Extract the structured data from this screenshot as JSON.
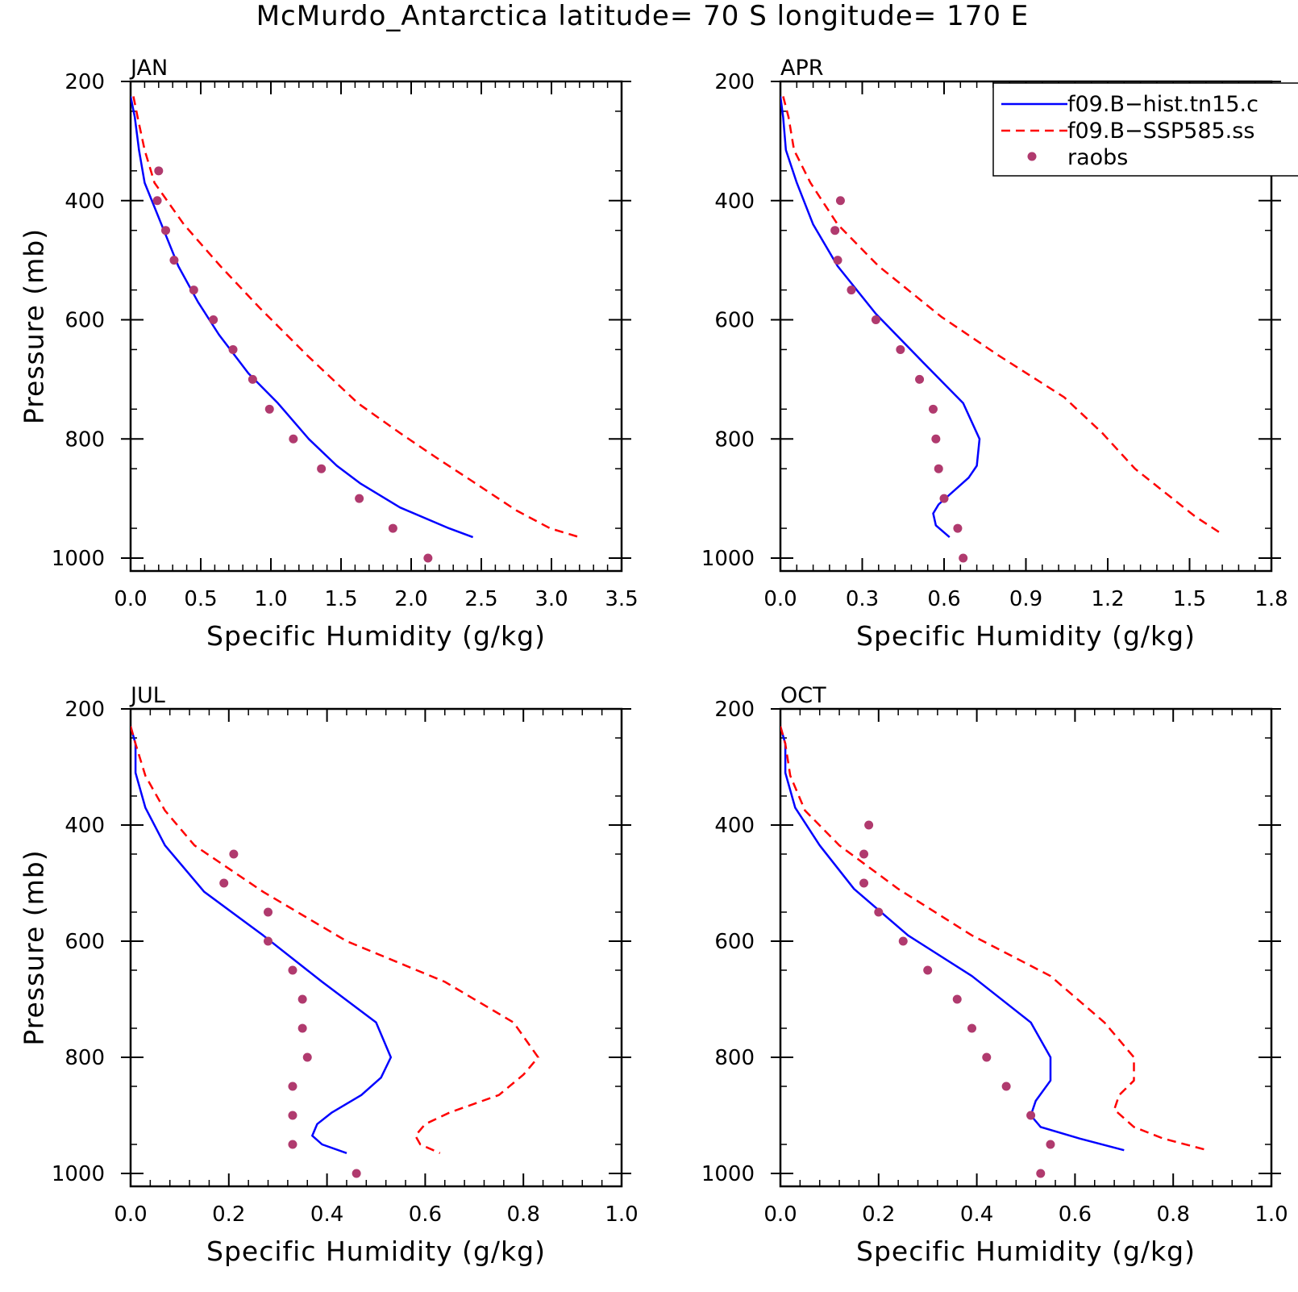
{
  "title": "McMurdo_Antarctica  latitude= 70 S longitude= 170 E",
  "colors": {
    "hist": "#0000ff",
    "ssp": "#ff0000",
    "raobs": "#b03a6e"
  },
  "legend": [
    {
      "label": "f09.B−hist.tn15.c",
      "style": "solid",
      "color_key": "hist"
    },
    {
      "label": "f09.B−SSP585.ss",
      "style": "dashed",
      "color_key": "ssp"
    },
    {
      "label": "raobs",
      "style": "dots",
      "color_key": "raobs"
    }
  ],
  "chart_data": [
    {
      "type": "line",
      "title": "JAN",
      "xlabel": "Specific Humidity (g/kg)",
      "ylabel": "Pressure (mb)",
      "xlim": [
        0,
        3.5
      ],
      "xticks": [
        "0.0",
        "0.5",
        "1.0",
        "1.5",
        "2.0",
        "2.5",
        "3.0",
        "3.5"
      ],
      "ylim": [
        1000,
        200
      ],
      "yticks": [
        "200",
        "400",
        "600",
        "800",
        "1000"
      ],
      "series": [
        {
          "name": "f09.B−hist.tn15.c",
          "style": "solid",
          "points": [
            [
              0.0,
              225
            ],
            [
              0.03,
              260
            ],
            [
              0.06,
              315
            ],
            [
              0.1,
              370
            ],
            [
              0.22,
              440
            ],
            [
              0.34,
              510
            ],
            [
              0.48,
              570
            ],
            [
              0.63,
              625
            ],
            [
              0.84,
              690
            ],
            [
              1.05,
              740
            ],
            [
              1.27,
              800
            ],
            [
              1.47,
              845
            ],
            [
              1.64,
              875
            ],
            [
              1.92,
              915
            ],
            [
              2.27,
              950
            ],
            [
              2.44,
              965
            ]
          ]
        },
        {
          "name": "f09.B−SSP585.ss",
          "style": "dashed",
          "points": [
            [
              0.02,
              225
            ],
            [
              0.05,
              260
            ],
            [
              0.1,
              315
            ],
            [
              0.17,
              370
            ],
            [
              0.38,
              440
            ],
            [
              0.64,
              510
            ],
            [
              0.92,
              580
            ],
            [
              1.26,
              660
            ],
            [
              1.62,
              740
            ],
            [
              1.92,
              790
            ],
            [
              2.17,
              830
            ],
            [
              2.43,
              870
            ],
            [
              2.75,
              920
            ],
            [
              2.99,
              950
            ],
            [
              3.2,
              965
            ]
          ]
        },
        {
          "name": "raobs",
          "style": "dots",
          "points": [
            [
              0.2,
              350
            ],
            [
              0.19,
              400
            ],
            [
              0.25,
              450
            ],
            [
              0.31,
              500
            ],
            [
              0.45,
              550
            ],
            [
              0.59,
              600
            ],
            [
              0.73,
              650
            ],
            [
              0.87,
              700
            ],
            [
              0.99,
              750
            ],
            [
              1.16,
              800
            ],
            [
              1.36,
              850
            ],
            [
              1.63,
              900
            ],
            [
              1.87,
              950
            ],
            [
              2.12,
              1000
            ]
          ]
        }
      ]
    },
    {
      "type": "line",
      "title": "APR",
      "xlabel": "Specific Humidity (g/kg)",
      "ylabel": "",
      "xlim": [
        0,
        1.8
      ],
      "xticks": [
        "0.0",
        "0.3",
        "0.6",
        "0.9",
        "1.2",
        "1.5",
        "1.8"
      ],
      "ylim": [
        1000,
        200
      ],
      "yticks": [
        "200",
        "400",
        "600",
        "800",
        "1000"
      ],
      "series": [
        {
          "name": "f09.B−hist.tn15.c",
          "style": "solid",
          "points": [
            [
              0.0,
              225
            ],
            [
              0.01,
              260
            ],
            [
              0.02,
              315
            ],
            [
              0.06,
              370
            ],
            [
              0.12,
              440
            ],
            [
              0.21,
              510
            ],
            [
              0.35,
              590
            ],
            [
              0.52,
              670
            ],
            [
              0.67,
              740
            ],
            [
              0.73,
              800
            ],
            [
              0.72,
              845
            ],
            [
              0.69,
              865
            ],
            [
              0.58,
              910
            ],
            [
              0.56,
              925
            ],
            [
              0.57,
              945
            ],
            [
              0.62,
              965
            ]
          ]
        },
        {
          "name": "f09.B−SSP585.ss",
          "style": "dashed",
          "points": [
            [
              0.01,
              225
            ],
            [
              0.03,
              260
            ],
            [
              0.05,
              315
            ],
            [
              0.11,
              370
            ],
            [
              0.21,
              440
            ],
            [
              0.36,
              510
            ],
            [
              0.59,
              595
            ],
            [
              0.8,
              660
            ],
            [
              1.04,
              730
            ],
            [
              1.18,
              790
            ],
            [
              1.3,
              850
            ],
            [
              1.52,
              930
            ],
            [
              1.62,
              960
            ]
          ]
        },
        {
          "name": "raobs",
          "style": "dots",
          "points": [
            [
              0.22,
              400
            ],
            [
              0.2,
              450
            ],
            [
              0.21,
              500
            ],
            [
              0.26,
              550
            ],
            [
              0.35,
              600
            ],
            [
              0.44,
              650
            ],
            [
              0.51,
              700
            ],
            [
              0.56,
              750
            ],
            [
              0.57,
              800
            ],
            [
              0.58,
              850
            ],
            [
              0.6,
              900
            ],
            [
              0.65,
              950
            ],
            [
              0.67,
              1000
            ]
          ]
        }
      ]
    },
    {
      "type": "line",
      "title": "JUL",
      "xlabel": "Specific Humidity (g/kg)",
      "ylabel": "Pressure (mb)",
      "xlim": [
        0,
        1.0
      ],
      "xticks": [
        "0.0",
        "0.2",
        "0.4",
        "0.6",
        "0.8",
        "1.0"
      ],
      "ylim": [
        1000,
        200
      ],
      "yticks": [
        "200",
        "400",
        "600",
        "800",
        "1000"
      ],
      "series": [
        {
          "name": "f09.B−hist.tn15.c",
          "style": "solid",
          "points": [
            [
              0.0,
              230
            ],
            [
              0.01,
              260
            ],
            [
              0.01,
              310
            ],
            [
              0.03,
              370
            ],
            [
              0.07,
              435
            ],
            [
              0.15,
              515
            ],
            [
              0.27,
              590
            ],
            [
              0.39,
              670
            ],
            [
              0.5,
              740
            ],
            [
              0.53,
              800
            ],
            [
              0.51,
              835
            ],
            [
              0.47,
              865
            ],
            [
              0.41,
              895
            ],
            [
              0.38,
              915
            ],
            [
              0.37,
              935
            ],
            [
              0.39,
              950
            ],
            [
              0.44,
              965
            ]
          ]
        },
        {
          "name": "f09.B−SSP585.ss",
          "style": "dashed",
          "points": [
            [
              0.0,
              230
            ],
            [
              0.01,
              260
            ],
            [
              0.03,
              315
            ],
            [
              0.07,
              375
            ],
            [
              0.13,
              435
            ],
            [
              0.27,
              515
            ],
            [
              0.44,
              600
            ],
            [
              0.64,
              670
            ],
            [
              0.78,
              740
            ],
            [
              0.83,
              800
            ],
            [
              0.8,
              830
            ],
            [
              0.75,
              865
            ],
            [
              0.65,
              895
            ],
            [
              0.6,
              915
            ],
            [
              0.58,
              935
            ],
            [
              0.59,
              950
            ],
            [
              0.63,
              965
            ]
          ]
        },
        {
          "name": "raobs",
          "style": "dots",
          "points": [
            [
              0.21,
              450
            ],
            [
              0.19,
              500
            ],
            [
              0.28,
              550
            ],
            [
              0.28,
              600
            ],
            [
              0.33,
              650
            ],
            [
              0.35,
              700
            ],
            [
              0.35,
              750
            ],
            [
              0.36,
              800
            ],
            [
              0.33,
              850
            ],
            [
              0.33,
              900
            ],
            [
              0.33,
              950
            ],
            [
              0.46,
              1000
            ]
          ]
        }
      ]
    },
    {
      "type": "line",
      "title": "OCT",
      "xlabel": "Specific Humidity (g/kg)",
      "ylabel": "",
      "xlim": [
        0,
        1.0
      ],
      "xticks": [
        "0.0",
        "0.2",
        "0.4",
        "0.6",
        "0.8",
        "1.0"
      ],
      "ylim": [
        1000,
        200
      ],
      "yticks": [
        "200",
        "400",
        "600",
        "800",
        "1000"
      ],
      "series": [
        {
          "name": "f09.B−hist.tn15.c",
          "style": "solid",
          "points": [
            [
              0.0,
              230
            ],
            [
              0.01,
              260
            ],
            [
              0.01,
              310
            ],
            [
              0.03,
              370
            ],
            [
              0.08,
              435
            ],
            [
              0.15,
              510
            ],
            [
              0.26,
              590
            ],
            [
              0.39,
              660
            ],
            [
              0.51,
              740
            ],
            [
              0.55,
              800
            ],
            [
              0.55,
              840
            ],
            [
              0.52,
              875
            ],
            [
              0.51,
              900
            ],
            [
              0.53,
              920
            ],
            [
              0.61,
              940
            ],
            [
              0.7,
              960
            ]
          ]
        },
        {
          "name": "f09.B−SSP585.ss",
          "style": "dashed",
          "points": [
            [
              0.0,
              230
            ],
            [
              0.01,
              260
            ],
            [
              0.02,
              315
            ],
            [
              0.05,
              375
            ],
            [
              0.12,
              435
            ],
            [
              0.24,
              510
            ],
            [
              0.39,
              590
            ],
            [
              0.55,
              660
            ],
            [
              0.66,
              740
            ],
            [
              0.72,
              800
            ],
            [
              0.72,
              840
            ],
            [
              0.69,
              865
            ],
            [
              0.68,
              890
            ],
            [
              0.72,
              920
            ],
            [
              0.78,
              940
            ],
            [
              0.87,
              960
            ]
          ]
        },
        {
          "name": "raobs",
          "style": "dots",
          "points": [
            [
              0.18,
              400
            ],
            [
              0.17,
              450
            ],
            [
              0.17,
              500
            ],
            [
              0.2,
              550
            ],
            [
              0.25,
              600
            ],
            [
              0.3,
              650
            ],
            [
              0.36,
              700
            ],
            [
              0.39,
              750
            ],
            [
              0.42,
              800
            ],
            [
              0.46,
              850
            ],
            [
              0.51,
              900
            ],
            [
              0.55,
              950
            ],
            [
              0.53,
              1000
            ]
          ]
        }
      ]
    }
  ]
}
